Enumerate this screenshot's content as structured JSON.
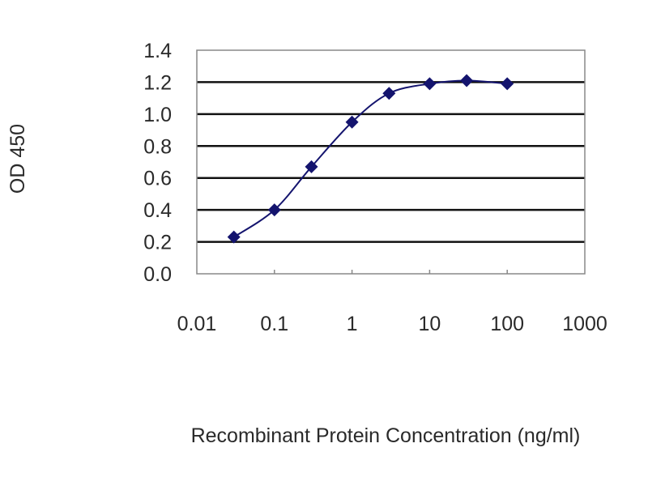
{
  "chart_data": {
    "type": "line",
    "title": "",
    "xlabel": "Recombinant Protein Concentration (ng/ml)",
    "ylabel": "OD 450",
    "x_scale": "log",
    "xlim": [
      0.01,
      1000
    ],
    "ylim": [
      0.0,
      1.4
    ],
    "x_ticks": [
      "0.01",
      "0.1",
      "1",
      "10",
      "100",
      "1000"
    ],
    "y_ticks": [
      "0.0",
      "0.2",
      "0.4",
      "0.6",
      "0.8",
      "1.0",
      "1.2",
      "1.4"
    ],
    "grid": "horizontal",
    "legend": "none",
    "series": [
      {
        "x": [
          0.03,
          0.1,
          0.3,
          1,
          3,
          10,
          30,
          100
        ],
        "y": [
          0.23,
          0.4,
          0.67,
          0.95,
          1.13,
          1.19,
          1.21,
          1.19
        ],
        "marker": "diamond",
        "color": "#14146e"
      }
    ]
  }
}
